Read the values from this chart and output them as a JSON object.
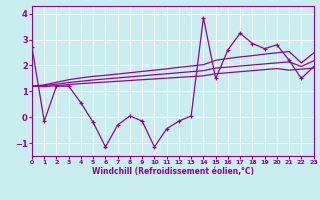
{
  "xlabel": "Windchill (Refroidissement éolien,°C)",
  "background_color": "#c8eef0",
  "line_color": "#990099",
  "grid_color": "#aadddd",
  "x_data": [
    0,
    1,
    2,
    3,
    4,
    5,
    6,
    7,
    8,
    9,
    10,
    11,
    12,
    13,
    14,
    15,
    16,
    17,
    18,
    19,
    20,
    21,
    22,
    23
  ],
  "y_main": [
    2.7,
    -0.15,
    1.2,
    1.2,
    0.55,
    -0.2,
    -1.15,
    -0.3,
    0.05,
    -0.15,
    -1.15,
    -0.45,
    -0.15,
    0.05,
    3.85,
    1.5,
    2.6,
    3.25,
    2.85,
    2.65,
    2.8,
    2.2,
    1.5,
    1.95
  ],
  "y_upper": [
    1.2,
    1.25,
    1.35,
    1.45,
    1.52,
    1.58,
    1.62,
    1.67,
    1.72,
    1.77,
    1.82,
    1.87,
    1.93,
    1.98,
    2.03,
    2.2,
    2.27,
    2.33,
    2.38,
    2.44,
    2.49,
    2.54,
    2.1,
    2.48
  ],
  "y_mid": [
    1.2,
    1.22,
    1.28,
    1.34,
    1.39,
    1.44,
    1.48,
    1.52,
    1.56,
    1.6,
    1.64,
    1.68,
    1.72,
    1.76,
    1.8,
    1.9,
    1.94,
    1.98,
    2.02,
    2.06,
    2.1,
    2.14,
    1.96,
    2.18
  ],
  "y_lower": [
    1.2,
    1.18,
    1.22,
    1.26,
    1.3,
    1.33,
    1.36,
    1.39,
    1.42,
    1.45,
    1.48,
    1.51,
    1.54,
    1.57,
    1.6,
    1.68,
    1.72,
    1.76,
    1.8,
    1.84,
    1.88,
    1.82,
    1.86,
    1.9
  ],
  "xlim": [
    0,
    23
  ],
  "ylim": [
    -1.5,
    4.3
  ],
  "yticks": [
    -1,
    0,
    1,
    2,
    3,
    4
  ],
  "xticks": [
    0,
    1,
    2,
    3,
    4,
    5,
    6,
    7,
    8,
    9,
    10,
    11,
    12,
    13,
    14,
    15,
    16,
    17,
    18,
    19,
    20,
    21,
    22,
    23
  ]
}
